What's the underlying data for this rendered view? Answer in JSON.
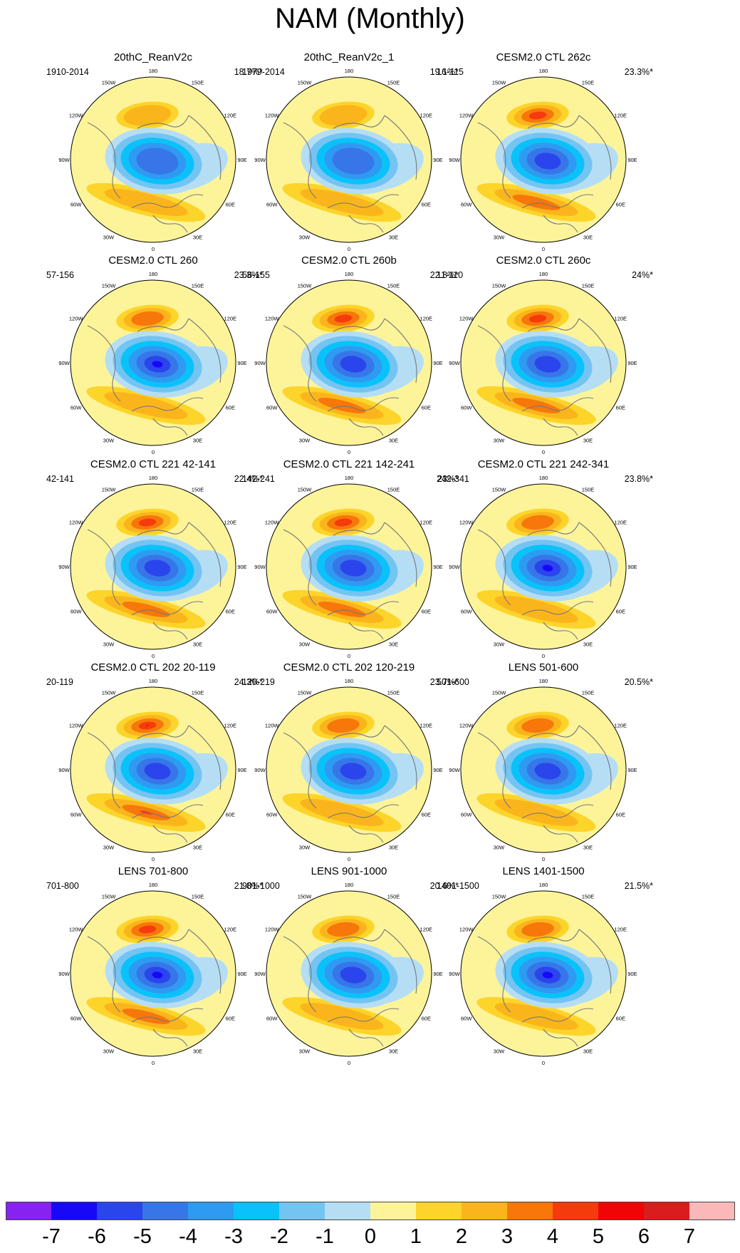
{
  "title": "NAM (Monthly)",
  "panels": [
    {
      "title": "20thC_ReanV2c",
      "period": "1910-2014",
      "percent": "18.7%*",
      "pos_max": 2,
      "neg_min": -5
    },
    {
      "title": "20thC_ReanV2c_1",
      "period": "1979-2014",
      "percent": "19.1%*",
      "pos_max": 2,
      "neg_min": -5
    },
    {
      "title": "CESM2.0 CTL 262c",
      "period": "16-115",
      "percent": "23.3%*",
      "pos_max": 4,
      "neg_min": -6
    },
    {
      "title": "CESM2.0 CTL 260",
      "period": "57-156",
      "percent": "23.3%*",
      "pos_max": 3,
      "neg_min": -7
    },
    {
      "title": "CESM2.0 CTL 260b",
      "period": "56-155",
      "percent": "22.8%*",
      "pos_max": 4,
      "neg_min": -6
    },
    {
      "title": "CESM2.0 CTL 260c",
      "period": "11-110",
      "percent": "24%*",
      "pos_max": 4,
      "neg_min": -6
    },
    {
      "title": "CESM2.0 CTL 221 42-141",
      "period": "42-141",
      "percent": "22.4%*",
      "pos_max": 4,
      "neg_min": -6
    },
    {
      "title": "CESM2.0 CTL 221 142-241",
      "period": "142-241",
      "percent": "23%*",
      "pos_max": 4,
      "neg_min": -6
    },
    {
      "title": "CESM2.0 CTL 221 242-341",
      "period": "242-341",
      "percent": "23.8%*",
      "pos_max": 3,
      "neg_min": -7
    },
    {
      "title": "CESM2.0 CTL 202 20-119",
      "period": "20-119",
      "percent": "24.3%*",
      "pos_max": 5,
      "neg_min": -6
    },
    {
      "title": "CESM2.0 CTL 202 120-219",
      "period": "120-219",
      "percent": "23.7%*",
      "pos_max": 3,
      "neg_min": -6
    },
    {
      "title": "LENS 501-600",
      "period": "501-600",
      "percent": "20.5%*",
      "pos_max": 3,
      "neg_min": -6
    },
    {
      "title": "LENS 701-800",
      "period": "701-800",
      "percent": "21.8%*",
      "pos_max": 4,
      "neg_min": -7
    },
    {
      "title": "LENS 901-1000",
      "period": "901-1000",
      "percent": "20.6%*",
      "pos_max": 3,
      "neg_min": -6
    },
    {
      "title": "LENS 1401-1500",
      "period": "1401-1500",
      "percent": "21.5%*",
      "pos_max": 3,
      "neg_min": -7
    }
  ],
  "lon_labels": [
    "180",
    "150E",
    "120E",
    "90E",
    "60E",
    "30E",
    "0",
    "30W",
    "60W",
    "90W",
    "120W",
    "150W"
  ],
  "colorbar": {
    "labels": [
      "-7",
      "-6",
      "-5",
      "-4",
      "-3",
      "-2",
      "-1",
      "0",
      "1",
      "2",
      "3",
      "4",
      "5",
      "6",
      "7"
    ],
    "colors": [
      "#8722f0",
      "#1708f8",
      "#2b45ec",
      "#3776e8",
      "#2f9af1",
      "#0ac2fa",
      "#74c4f2",
      "#b5def5",
      "#fdf49a",
      "#fdd42a",
      "#fbb51c",
      "#f7770b",
      "#f53b0b",
      "#f10405",
      "#d91c1c",
      "#fbb8b8"
    ]
  }
}
